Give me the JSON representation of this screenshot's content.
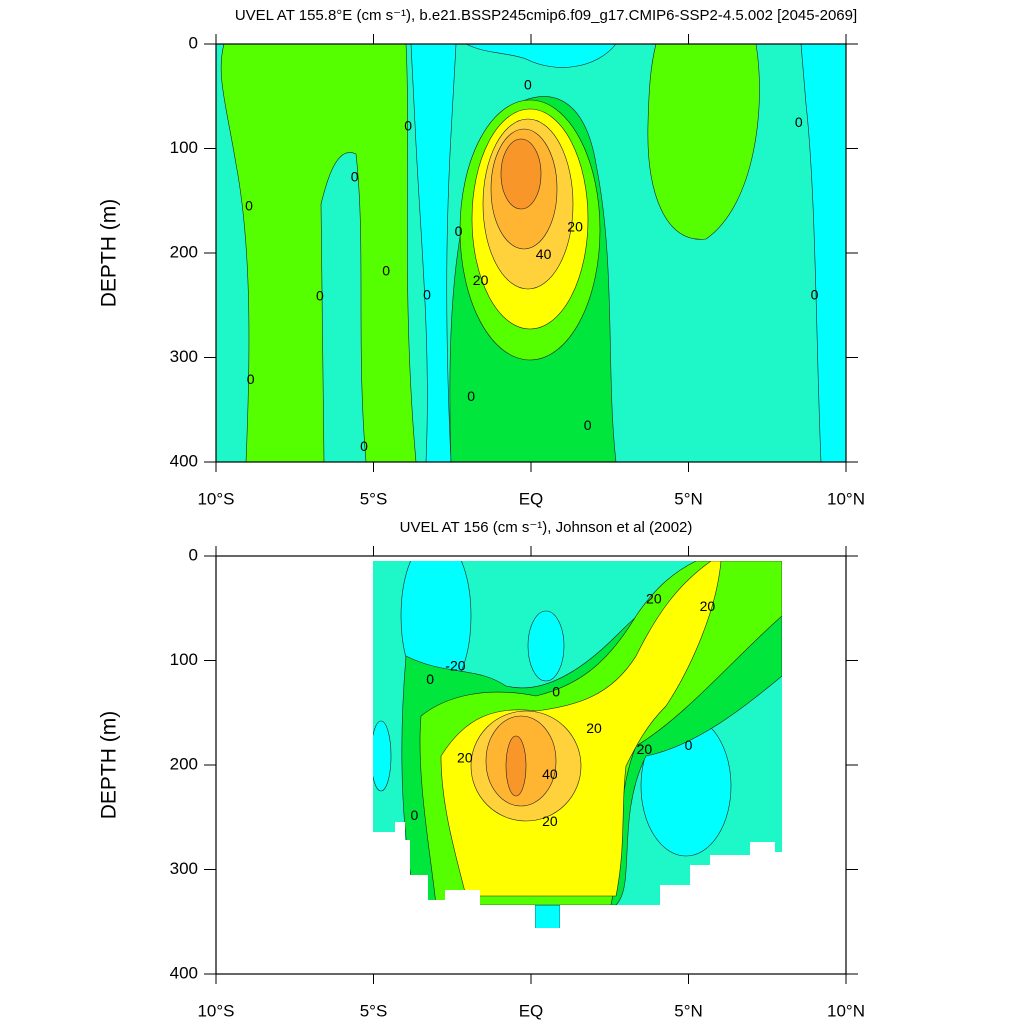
{
  "chart_data": [
    {
      "type": "contour",
      "title": "UVEL AT 155.8°E (cm s⁻¹), b.e21.BSSP245cmip6.f09_g17.CMIP6-SSP2-4.5.002 [2045-2069]",
      "ylabel": "DEPTH (m)",
      "xlim": [
        -10,
        10
      ],
      "ylim": [
        0,
        400
      ],
      "y_inverted": true,
      "xticks": [
        {
          "value": -10,
          "label": "10°S"
        },
        {
          "value": -5,
          "label": "5°S"
        },
        {
          "value": 0,
          "label": "EQ"
        },
        {
          "value": 5,
          "label": "5°N"
        },
        {
          "value": 10,
          "label": "10°N"
        }
      ],
      "yticks": [
        0,
        100,
        200,
        300,
        400
      ],
      "colors": [
        "#00ffff",
        "#1ef8c8",
        "#00e63c",
        "#55ff00",
        "#ffff00",
        "#ffd23c",
        "#ffb432",
        "#f8962a"
      ],
      "contour_labels": [
        {
          "lat": -8.95,
          "depth": 156,
          "value": 0
        },
        {
          "lat": -8.9,
          "depth": 322,
          "value": 0
        },
        {
          "lat": -6.7,
          "depth": 242,
          "value": 0
        },
        {
          "lat": -5.6,
          "depth": 128,
          "value": 0
        },
        {
          "lat": -5.3,
          "depth": 386,
          "value": 0
        },
        {
          "lat": -4.6,
          "depth": 218,
          "value": 0
        },
        {
          "lat": -3.9,
          "depth": 79,
          "value": 0
        },
        {
          "lat": -3.3,
          "depth": 241,
          "value": 0
        },
        {
          "lat": -2.3,
          "depth": 180,
          "value": 0
        },
        {
          "lat": -1.9,
          "depth": 338,
          "value": 0
        },
        {
          "lat": -0.1,
          "depth": 40,
          "value": 0
        },
        {
          "lat": 1.8,
          "depth": 366,
          "value": 0
        },
        {
          "lat": 8.5,
          "depth": 76,
          "value": 0
        },
        {
          "lat": 9.0,
          "depth": 241,
          "value": 0
        },
        {
          "lat": 1.4,
          "depth": 176,
          "value": 20
        },
        {
          "lat": 0.4,
          "depth": 202,
          "value": 40
        },
        {
          "lat": -1.6,
          "depth": 227,
          "value": 20
        }
      ]
    },
    {
      "type": "contour",
      "title": "UVEL AT 156 (cm s⁻¹), Johnson et al (2002)",
      "ylabel": "DEPTH (m)",
      "xlim": [
        -10,
        10
      ],
      "ylim": [
        0,
        400
      ],
      "y_inverted": true,
      "xticks": [
        {
          "value": -10,
          "label": "10°S"
        },
        {
          "value": -5,
          "label": "5°S"
        },
        {
          "value": 0,
          "label": "EQ"
        },
        {
          "value": 5,
          "label": "5°N"
        },
        {
          "value": 10,
          "label": "10°N"
        }
      ],
      "yticks": [
        0,
        100,
        200,
        300,
        400
      ],
      "colors": [
        "#00ffff",
        "#1ef8c8",
        "#00e63c",
        "#55ff00",
        "#ffff00",
        "#ffd23c",
        "#ffb432",
        "#f8962a"
      ],
      "contour_labels": [
        {
          "lat": -2.4,
          "depth": 106,
          "value": -20
        },
        {
          "lat": -3.2,
          "depth": 119,
          "value": 0
        },
        {
          "lat": 0.8,
          "depth": 131,
          "value": 0
        },
        {
          "lat": 3.9,
          "depth": 42,
          "value": 20
        },
        {
          "lat": 5.6,
          "depth": 49,
          "value": 20
        },
        {
          "lat": 2.0,
          "depth": 166,
          "value": 20
        },
        {
          "lat": -2.1,
          "depth": 194,
          "value": 20
        },
        {
          "lat": 0.6,
          "depth": 210,
          "value": 40
        },
        {
          "lat": 0.6,
          "depth": 255,
          "value": 20
        },
        {
          "lat": 3.6,
          "depth": 186,
          "value": 20
        },
        {
          "lat": 5.0,
          "depth": 182,
          "value": 0
        },
        {
          "lat": -3.7,
          "depth": 249,
          "value": 0
        }
      ]
    }
  ]
}
